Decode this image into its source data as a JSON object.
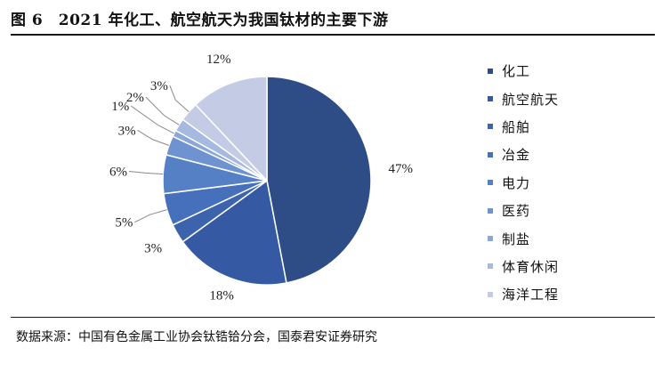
{
  "header": {
    "title": "图 6　2021 年化工、航空航天为我国钛材的主要下游"
  },
  "source": "数据来源：中国有色金属工业协会钛锆铪分会，国泰君安证券研究",
  "chart_data": {
    "type": "pie",
    "categories": [
      "化工",
      "航空航天",
      "船舶",
      "冶金",
      "电力",
      "医药",
      "制盐",
      "体育休闲",
      "海洋工程"
    ],
    "values": [
      47,
      18,
      3,
      5,
      6,
      3,
      1,
      2,
      3
    ],
    "series_values_remainder_note": "",
    "labels": [
      "47%",
      "18%",
      "3%",
      "5%",
      "6%",
      "3%",
      "1%",
      "2%",
      "3%",
      "12%"
    ],
    "colors": [
      "#2e4d87",
      "#3659a3",
      "#3d63ad",
      "#4670bb",
      "#5680c6",
      "#6f93d1",
      "#8aa6da",
      "#a6b9e1",
      "#c4cce5"
    ],
    "legend_position": "right",
    "other_slice": {
      "value": 12,
      "label": "12%",
      "color": "#c4cce5"
    }
  },
  "legend": {
    "items": [
      {
        "label": "化工",
        "color": "#2e4d87"
      },
      {
        "label": "航空航天",
        "color": "#3659a3"
      },
      {
        "label": "船舶",
        "color": "#3d63ad"
      },
      {
        "label": "冶金",
        "color": "#4670bb"
      },
      {
        "label": "电力",
        "color": "#5680c6"
      },
      {
        "label": "医药",
        "color": "#6f93d1"
      },
      {
        "label": "制盐",
        "color": "#8aa6da"
      },
      {
        "label": "体育休闲",
        "color": "#a6b9e1"
      },
      {
        "label": "海洋工程",
        "color": "#c4cce5"
      }
    ]
  }
}
